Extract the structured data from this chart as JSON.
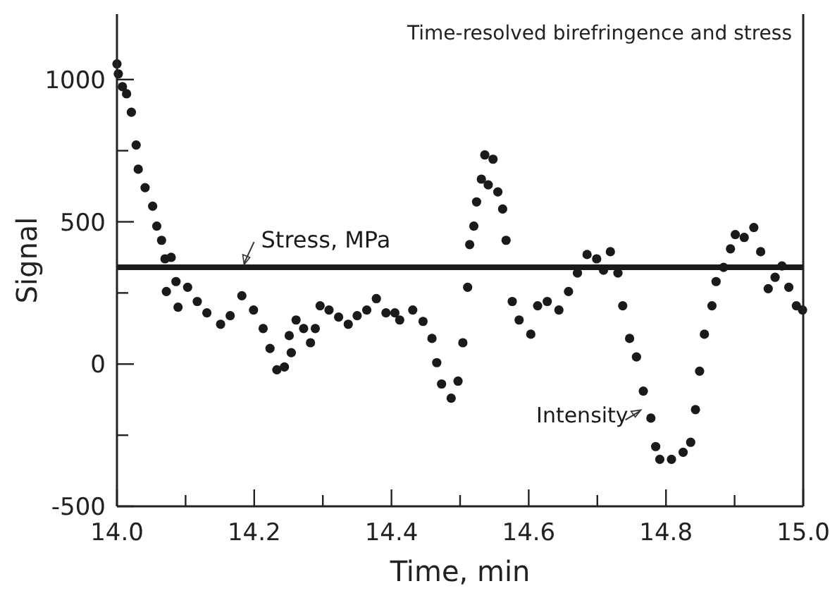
{
  "chart_data": {
    "type": "scatter",
    "title": "Time-resolved birefringence and stress",
    "xlabel": "Time, min",
    "ylabel": "Signal",
    "xlim": [
      14.0,
      15.0
    ],
    "ylim": [
      -500,
      1230
    ],
    "xticks": [
      {
        "value": 14.0,
        "label": "14.0"
      },
      {
        "value": 14.1,
        "label": null
      },
      {
        "value": 14.2,
        "label": "14.2"
      },
      {
        "value": 14.3,
        "label": null
      },
      {
        "value": 14.4,
        "label": "14.4"
      },
      {
        "value": 14.5,
        "label": null
      },
      {
        "value": 14.6,
        "label": "14.6"
      },
      {
        "value": 14.7,
        "label": null
      },
      {
        "value": 14.8,
        "label": "14.8"
      },
      {
        "value": 14.9,
        "label": null
      },
      {
        "value": 15.0,
        "label": "15.0"
      }
    ],
    "yticks": [
      -500,
      {
        "value": -250,
        "label": null
      },
      0,
      {
        "value": 250,
        "label": null
      },
      500,
      {
        "value": 750,
        "label": null
      },
      1000
    ],
    "grid": false,
    "series": [
      {
        "name": "Stress, MPa",
        "type": "line",
        "color": "#1a1a1a",
        "marker": "none",
        "line_style": "solid",
        "x": [
          14.0,
          15.0
        ],
        "values": [
          340,
          340
        ]
      },
      {
        "name": "Intensity",
        "color": "#1a1a1a",
        "marker": "circle",
        "x": [
          14.0,
          14.002,
          14.008,
          14.014,
          14.021,
          14.028,
          14.031,
          14.041,
          14.052,
          14.058,
          14.065,
          14.07,
          14.072,
          14.079,
          14.086,
          14.089,
          14.103,
          14.117,
          14.131,
          14.151,
          14.165,
          14.182,
          14.199,
          14.213,
          14.223,
          14.233,
          14.244,
          14.251,
          14.254,
          14.261,
          14.272,
          14.282,
          14.289,
          14.296,
          14.309,
          14.323,
          14.337,
          14.35,
          14.364,
          14.378,
          14.392,
          14.405,
          14.412,
          14.431,
          14.446,
          14.459,
          14.466,
          14.473,
          14.487,
          14.497,
          14.504,
          14.511,
          14.514,
          14.52,
          14.524,
          14.531,
          14.536,
          14.541,
          14.548,
          14.555,
          14.562,
          14.567,
          14.576,
          14.586,
          14.603,
          14.613,
          14.627,
          14.644,
          14.658,
          14.671,
          14.685,
          14.699,
          14.709,
          14.719,
          14.73,
          14.737,
          14.747,
          14.757,
          14.767,
          14.778,
          14.785,
          14.791,
          14.808,
          14.825,
          14.836,
          14.843,
          14.849,
          14.856,
          14.867,
          14.873,
          14.884,
          14.894,
          14.901,
          14.914,
          14.928,
          14.938,
          14.949,
          14.959,
          14.969,
          14.979,
          14.99,
          14.999
        ],
        "values": [
          1055,
          1020,
          975,
          950,
          885,
          770,
          685,
          620,
          555,
          485,
          435,
          370,
          255,
          375,
          290,
          200,
          270,
          220,
          180,
          140,
          170,
          240,
          190,
          125,
          55,
          -20,
          -10,
          100,
          40,
          155,
          125,
          75,
          125,
          205,
          190,
          165,
          140,
          170,
          190,
          230,
          180,
          180,
          155,
          190,
          150,
          90,
          5,
          -70,
          -120,
          -60,
          75,
          270,
          420,
          485,
          570,
          650,
          735,
          630,
          720,
          605,
          545,
          435,
          220,
          155,
          105,
          205,
          220,
          190,
          255,
          320,
          385,
          370,
          330,
          395,
          320,
          205,
          90,
          25,
          -95,
          -190,
          -290,
          -335,
          -335,
          -310,
          -275,
          -160,
          -25,
          105,
          205,
          290,
          340,
          405,
          455,
          445,
          480,
          395,
          265,
          305,
          345,
          270,
          205,
          190
        ]
      }
    ]
  }
}
